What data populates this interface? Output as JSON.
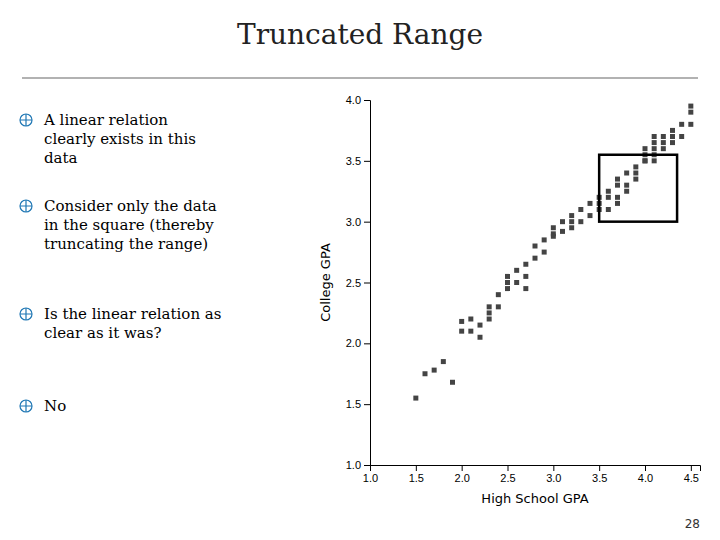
{
  "chart_data": {
    "type": "scatter",
    "title": "Truncated Range",
    "bullets": [
      "A linear relation\nclearly exists in this\ndata",
      "Consider only the data\nin the square (thereby\ntruncating the range)",
      "Is the linear relation as\nclear as it was?",
      "No"
    ],
    "x_label": "High School GPA",
    "y_label": "College GPA",
    "xlim": [
      1.0,
      4.6
    ],
    "ylim": [
      1.0,
      4.0
    ],
    "xticks": [
      {
        "value": 1.0,
        "label": "1.0"
      },
      1.5,
      {
        "value": 2.0,
        "label": "2.0"
      },
      2.5,
      {
        "value": 3.0,
        "label": "3.0"
      },
      3.5,
      {
        "value": 4.0,
        "label": "4.0"
      },
      4.5
    ],
    "yticks": [
      {
        "value": 1.0,
        "label": "1.0"
      },
      1.5,
      {
        "value": 2.0,
        "label": "2.0"
      },
      2.5,
      {
        "value": 3.0,
        "label": "3.0"
      },
      3.5,
      {
        "value": 4.0,
        "label": "4.0"
      }
    ],
    "color": "#444444",
    "marker": "square",
    "highlight": {
      "x": 3.5,
      "y": 3.0,
      "width": 0.85,
      "height": 0.55
    },
    "page_number": "28",
    "x": [
      1.5,
      1.6,
      1.7,
      1.8,
      1.9,
      2.0,
      2.0,
      2.1,
      2.1,
      2.2,
      2.2,
      2.3,
      2.3,
      2.3,
      2.4,
      2.4,
      2.5,
      2.5,
      2.5,
      2.6,
      2.6,
      2.7,
      2.7,
      2.7,
      2.8,
      2.8,
      2.9,
      2.9,
      3.0,
      3.0,
      3.0,
      3.1,
      3.1,
      3.2,
      3.2,
      3.2,
      3.3,
      3.3,
      3.4,
      3.4,
      3.5,
      3.5,
      3.5,
      3.6,
      3.6,
      3.6,
      3.7,
      3.7,
      3.7,
      3.7,
      3.8,
      3.8,
      3.8,
      3.9,
      3.9,
      3.9,
      4.0,
      4.0,
      4.0,
      4.0,
      4.1,
      4.1,
      4.1,
      4.1,
      4.1,
      4.2,
      4.2,
      4.2,
      4.3,
      4.3,
      4.3,
      4.4,
      4.4,
      4.5,
      4.5,
      4.5
    ],
    "y": [
      1.55,
      1.75,
      1.78,
      1.85,
      1.68,
      2.1,
      2.18,
      2.2,
      2.1,
      2.05,
      2.15,
      2.2,
      2.3,
      2.25,
      2.3,
      2.4,
      2.45,
      2.5,
      2.55,
      2.5,
      2.6,
      2.45,
      2.55,
      2.65,
      2.7,
      2.8,
      2.75,
      2.85,
      2.9,
      2.95,
      2.88,
      2.92,
      3.0,
      3.0,
      3.05,
      2.95,
      3.0,
      3.1,
      3.05,
      3.15,
      3.1,
      3.2,
      3.15,
      3.1,
      3.2,
      3.25,
      3.15,
      3.3,
      3.2,
      3.35,
      3.3,
      3.4,
      3.25,
      3.35,
      3.45,
      3.4,
      3.5,
      3.6,
      3.5,
      3.55,
      3.6,
      3.5,
      3.65,
      3.55,
      3.7,
      3.6,
      3.7,
      3.65,
      3.65,
      3.7,
      3.75,
      3.7,
      3.8,
      3.8,
      3.9,
      3.95
    ]
  }
}
